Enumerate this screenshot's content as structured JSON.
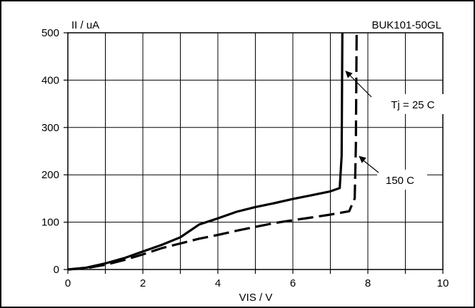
{
  "chart_data": {
    "type": "line",
    "ylabel": "II / uA",
    "xlabel": "VIS / V",
    "part_number": "BUK101-50GL",
    "xlim": [
      0,
      10
    ],
    "ylim": [
      0,
      500
    ],
    "xticks": [
      0,
      2,
      4,
      6,
      8,
      10
    ],
    "yticks": [
      0,
      100,
      200,
      300,
      400,
      500
    ],
    "minor_x_step": 1,
    "grid": true,
    "series": [
      {
        "name": "Tj = 25 C",
        "style": "solid",
        "color": "#000000",
        "points": [
          [
            0,
            0
          ],
          [
            0.5,
            4
          ],
          [
            1,
            13
          ],
          [
            1.5,
            24
          ],
          [
            2,
            38
          ],
          [
            2.5,
            52
          ],
          [
            3,
            68
          ],
          [
            3.5,
            95
          ],
          [
            4,
            108
          ],
          [
            4.5,
            122
          ],
          [
            5,
            132
          ],
          [
            5.5,
            140
          ],
          [
            6,
            149
          ],
          [
            6.5,
            157
          ],
          [
            7,
            165
          ],
          [
            7.25,
            172
          ],
          [
            7.3,
            240
          ],
          [
            7.32,
            500
          ]
        ]
      },
      {
        "name": "150 C",
        "style": "dashed",
        "color": "#000000",
        "points": [
          [
            0,
            0
          ],
          [
            0.5,
            3
          ],
          [
            1,
            10
          ],
          [
            1.5,
            20
          ],
          [
            2,
            32
          ],
          [
            2.5,
            45
          ],
          [
            3,
            55
          ],
          [
            3.5,
            65
          ],
          [
            4,
            73
          ],
          [
            4.5,
            82
          ],
          [
            5,
            90
          ],
          [
            5.5,
            98
          ],
          [
            6,
            104
          ],
          [
            6.5,
            110
          ],
          [
            7,
            116
          ],
          [
            7.5,
            123
          ],
          [
            7.65,
            150
          ],
          [
            7.68,
            260
          ],
          [
            7.7,
            500
          ]
        ]
      }
    ],
    "annotations": [
      {
        "text": "Tj = 25 C",
        "points_to_series": 0,
        "target": [
          7.32,
          420
        ]
      },
      {
        "text": "150 C",
        "points_to_series": 1,
        "target": [
          7.68,
          240
        ]
      }
    ]
  }
}
